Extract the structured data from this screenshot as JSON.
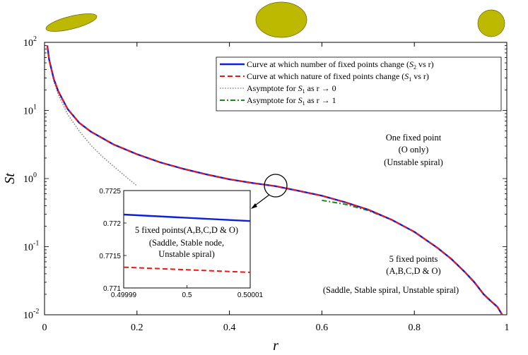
{
  "colors": {
    "s2": "#0b1fe0",
    "s1": "#f01515",
    "asym0": "#8a8a8a",
    "asym1": "#1a8a1a",
    "ellipse": "#bdb900",
    "ellipse_edge": "#6a6600"
  },
  "chart_data": [
    {
      "type": "line",
      "yscale": "log",
      "xlabel": "r",
      "ylabel": "St",
      "xlim": [
        0,
        1
      ],
      "ylim": [
        0.01,
        100
      ],
      "x_ticks": [
        0,
        0.2,
        0.4,
        0.6,
        0.8,
        1
      ],
      "x_tick_labels": [
        "0",
        "0.2",
        "0.4",
        "0.6",
        "0.8",
        "1"
      ],
      "y_ticks": [
        0.01,
        0.1,
        1,
        10,
        100
      ],
      "y_tick_labels": [
        {
          "base": "10",
          "exp": "-2"
        },
        {
          "base": "10",
          "exp": "-1"
        },
        {
          "base": "10",
          "exp": "0"
        },
        {
          "base": "10",
          "exp": "1"
        },
        {
          "base": "10",
          "exp": "2"
        }
      ],
      "series": [
        {
          "name": "Curve at which number of fixed points change (S2 vs r)",
          "style": "solid",
          "color": "#0b1fe0",
          "x": [
            0.006,
            0.01,
            0.02,
            0.03,
            0.05,
            0.075,
            0.1,
            0.15,
            0.2,
            0.25,
            0.3,
            0.35,
            0.4,
            0.45,
            0.5,
            0.55,
            0.6,
            0.65,
            0.7,
            0.75,
            0.8,
            0.85,
            0.88,
            0.91,
            0.93,
            0.95,
            0.965,
            0.98,
            0.99
          ],
          "y": [
            90,
            56,
            29,
            19,
            10.5,
            6.6,
            4.9,
            3.15,
            2.28,
            1.73,
            1.39,
            1.15,
            0.975,
            0.86,
            0.772,
            0.66,
            0.56,
            0.45,
            0.35,
            0.25,
            0.165,
            0.096,
            0.066,
            0.042,
            0.03,
            0.02,
            0.016,
            0.013,
            0.01
          ]
        },
        {
          "name": "Curve at which nature of fixed points change (S1 vs r)",
          "style": "dashed",
          "color": "#f01515",
          "x": [
            0.006,
            0.01,
            0.02,
            0.03,
            0.05,
            0.075,
            0.1,
            0.15,
            0.2,
            0.25,
            0.3,
            0.35,
            0.4,
            0.45,
            0.5,
            0.55,
            0.6,
            0.65,
            0.7,
            0.75,
            0.8,
            0.85,
            0.88,
            0.91,
            0.93,
            0.95,
            0.965,
            0.98,
            0.99
          ],
          "y": [
            90,
            56,
            29,
            19,
            10.5,
            6.6,
            4.9,
            3.15,
            2.28,
            1.73,
            1.39,
            1.15,
            0.975,
            0.86,
            0.7713,
            0.66,
            0.56,
            0.45,
            0.35,
            0.25,
            0.165,
            0.096,
            0.066,
            0.042,
            0.03,
            0.02,
            0.016,
            0.013,
            0.01
          ]
        },
        {
          "name": "Asymptote for S1 as r → 0",
          "style": "dotted",
          "color": "#8a8a8a",
          "x": [
            0.006,
            0.01,
            0.02,
            0.03,
            0.05,
            0.075,
            0.1,
            0.125,
            0.15,
            0.175,
            0.2
          ],
          "y": [
            90,
            55,
            27,
            17,
            8.8,
            5.0,
            3.1,
            2.1,
            1.5,
            1.08,
            0.78
          ]
        },
        {
          "name": "Asymptote for S1 as r → 1",
          "style": "dashdot",
          "color": "#1a8a1a",
          "x": [
            0.6,
            0.65,
            0.7,
            0.75,
            0.8,
            0.85,
            0.88,
            0.91,
            0.93,
            0.95,
            0.965,
            0.98,
            0.99
          ],
          "y": [
            0.48,
            0.42,
            0.34,
            0.25,
            0.165,
            0.096,
            0.066,
            0.042,
            0.03,
            0.02,
            0.016,
            0.013,
            0.01
          ]
        }
      ],
      "legend": {
        "position": "top-right",
        "entries": [
          {
            "text": "Curve at which number of fixed points change (",
            "sym": "S",
            "sub": "2",
            "tail": " vs r)"
          },
          {
            "text": "Curve at which nature of fixed points change (",
            "sym": "S",
            "sub": "1",
            "tail": " vs r)"
          },
          {
            "text": "Asymptote for ",
            "sym": "S",
            "sub": "1",
            "tail": " as r → 0"
          },
          {
            "text": "Asymptote for ",
            "sym": "S",
            "sub": "1",
            "tail": " as r → 1"
          }
        ]
      },
      "annotations": {
        "upper": [
          "One fixed point",
          "(O only)",
          "(Unstable spiral)"
        ],
        "lower": [
          "5 fixed points",
          "(A,B,C,D & O)",
          "(Saddle, Stable spiral, Unstable spiral)"
        ],
        "zoom_circle_at": {
          "x": 0.5,
          "y": 0.772
        }
      }
    },
    {
      "type": "line",
      "name": "inset",
      "xlim": [
        0.49999,
        0.50001
      ],
      "ylim": [
        0.771,
        0.7725
      ],
      "x_tick_labels": [
        "0.49999",
        "0.5",
        "0.50001"
      ],
      "y_tick_labels": [
        "0.7725",
        "0.772",
        "0.7715",
        "0.771"
      ],
      "series": [
        {
          "name": "S2",
          "style": "solid",
          "color": "#0b1fe0",
          "x": [
            0.49999,
            0.50001
          ],
          "y": [
            0.77213,
            0.77203
          ]
        },
        {
          "name": "S1",
          "style": "dashed",
          "color": "#f01515",
          "x": [
            0.49999,
            0.50001
          ],
          "y": [
            0.77132,
            0.77124
          ]
        }
      ],
      "annotation": [
        "5 fixed points(A,B,C,D & O)",
        "(Saddle, Stable node,",
        "Unstable spiral)"
      ]
    }
  ]
}
